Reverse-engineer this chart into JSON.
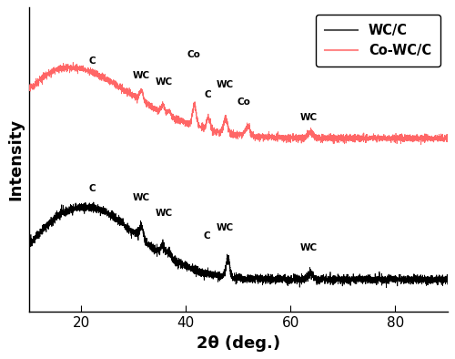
{
  "xlabel": "2θ (deg.)",
  "ylabel": "Intensity",
  "xlim": [
    10,
    90
  ],
  "ylim": [
    0.0,
    1.0
  ],
  "xticks": [
    20,
    40,
    60,
    80
  ],
  "legend_labels": [
    "WC/C",
    "Co-WC/C"
  ],
  "legend_colors": [
    "#555555",
    "#ff8888"
  ],
  "black_annots": [
    [
      "C",
      22.0,
      0.39
    ],
    [
      "WC",
      31.5,
      0.36
    ],
    [
      "WC",
      35.8,
      0.31
    ],
    [
      "C",
      44.0,
      0.235
    ],
    [
      "WC",
      47.5,
      0.26
    ],
    [
      "WC",
      63.5,
      0.195
    ]
  ],
  "red_annots": [
    [
      "C",
      22.0,
      0.81
    ],
    [
      "WC",
      31.5,
      0.76
    ],
    [
      "WC",
      35.8,
      0.74
    ],
    [
      "Co",
      41.5,
      0.83
    ],
    [
      "C",
      44.2,
      0.7
    ],
    [
      "WC",
      47.5,
      0.73
    ],
    [
      "Co",
      51.0,
      0.675
    ],
    [
      "WC",
      63.5,
      0.625
    ]
  ],
  "noise_black": 0.009,
  "noise_red": 0.01,
  "black_base": 0.08,
  "black_scale": 0.28,
  "red_base": 0.55,
  "red_scale": 0.27
}
